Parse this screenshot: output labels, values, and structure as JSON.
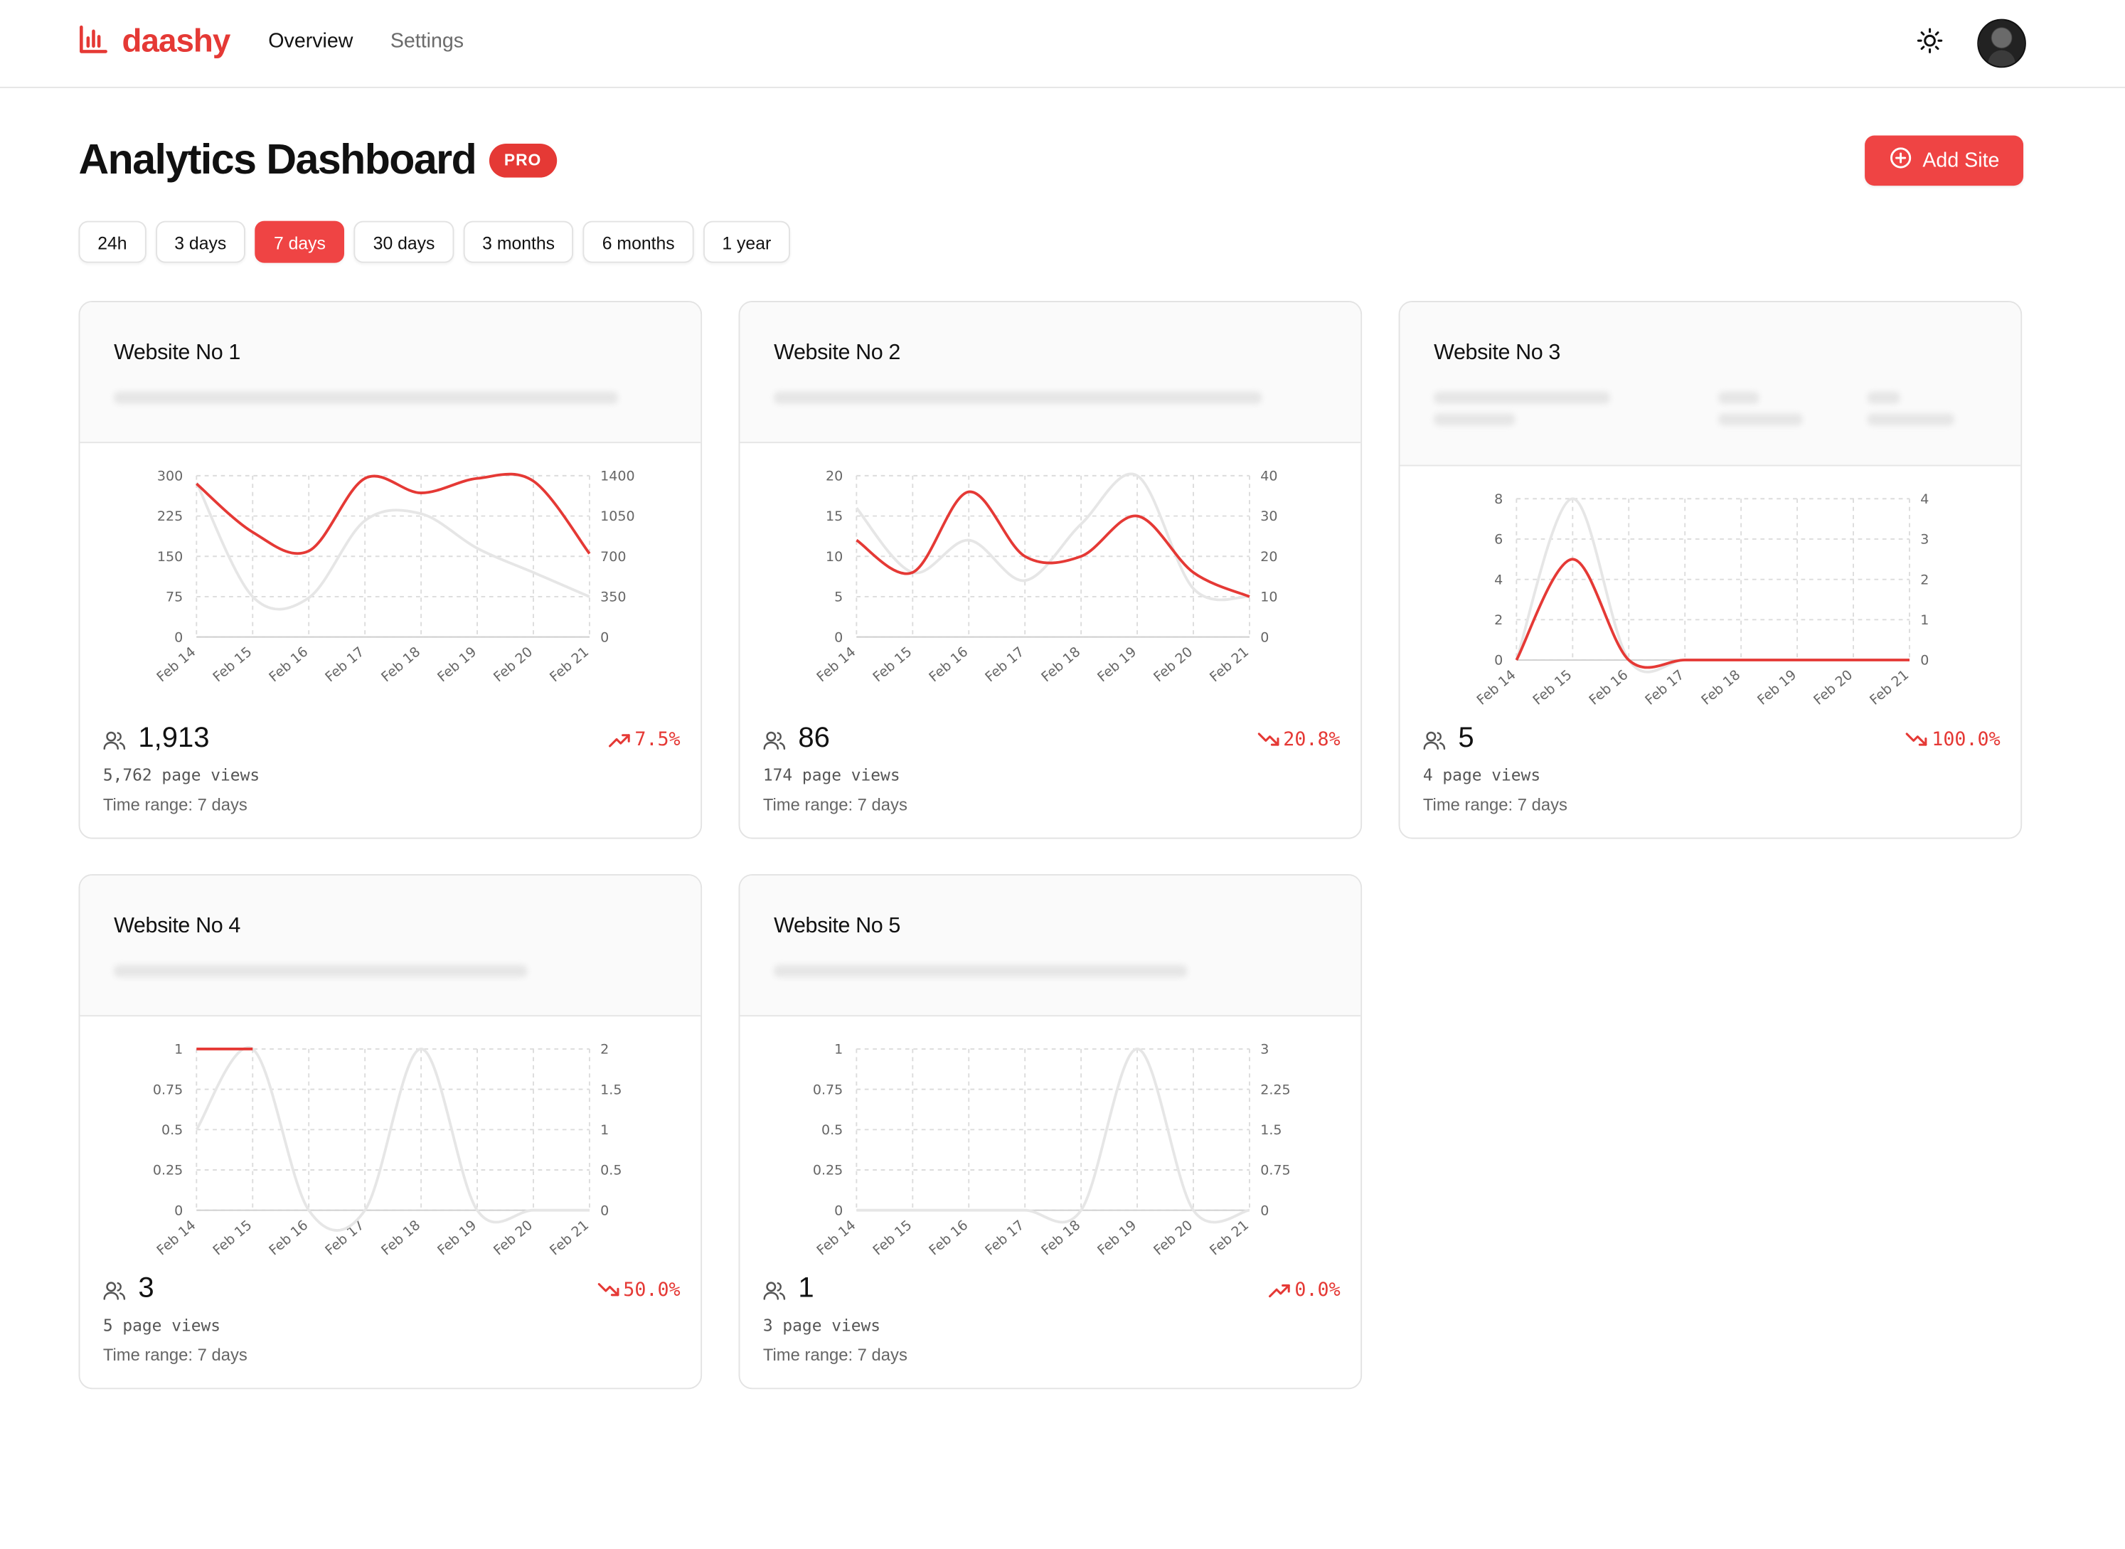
{
  "app": {
    "name": "daashy",
    "nav": [
      {
        "label": "Overview"
      },
      {
        "label": "Settings"
      }
    ]
  },
  "page": {
    "title": "Analytics Dashboard",
    "badge": "PRO",
    "add_site_label": "Add Site"
  },
  "ranges": [
    {
      "label": "24h",
      "active": false
    },
    {
      "label": "3 days",
      "active": false
    },
    {
      "label": "7 days",
      "active": true
    },
    {
      "label": "30 days",
      "active": false
    },
    {
      "label": "3 months",
      "active": false
    },
    {
      "label": "6 months",
      "active": false
    },
    {
      "label": "1 year",
      "active": false
    }
  ],
  "colors": {
    "accent": "#ef4444",
    "line_visitors": "#e53935",
    "line_pageviews": "#e6e6e6"
  },
  "sites": [
    {
      "name": "Website No 1",
      "visitors": "1,913",
      "change": "7.5%",
      "trend": "up",
      "pageviews": "5,762 page views",
      "time_range": "Time range: 7 days",
      "chart_data": {
        "type": "line",
        "x": [
          "Feb 14",
          "Feb 15",
          "Feb 16",
          "Feb 17",
          "Feb 18",
          "Feb 19",
          "Feb 20",
          "Feb 21"
        ],
        "y_left_ticks": [
          "0",
          "75",
          "150",
          "225",
          "300"
        ],
        "y_right_ticks": [
          "0",
          "350",
          "700",
          "1050",
          "1400"
        ],
        "ylim_left": [
          0,
          300
        ],
        "ylim_right": [
          0,
          1400
        ],
        "series": [
          {
            "axis": "left",
            "color": "#e53935",
            "values": [
              285,
              195,
              160,
              295,
              268,
              295,
              290,
              155
            ]
          },
          {
            "axis": "right",
            "color": "#e6e6e6",
            "values": [
              1340,
              350,
              340,
              1010,
              1070,
              770,
              560,
              350
            ]
          }
        ]
      }
    },
    {
      "name": "Website No 2",
      "visitors": "86",
      "change": "20.8%",
      "trend": "down",
      "pageviews": "174 page views",
      "time_range": "Time range: 7 days",
      "chart_data": {
        "type": "line",
        "x": [
          "Feb 14",
          "Feb 15",
          "Feb 16",
          "Feb 17",
          "Feb 18",
          "Feb 19",
          "Feb 20",
          "Feb 21"
        ],
        "y_left_ticks": [
          "0",
          "5",
          "10",
          "15",
          "20"
        ],
        "y_right_ticks": [
          "0",
          "10",
          "20",
          "30",
          "40"
        ],
        "ylim_left": [
          0,
          20
        ],
        "ylim_right": [
          0,
          40
        ],
        "series": [
          {
            "axis": "left",
            "color": "#e53935",
            "values": [
              12,
              8,
              18,
              10,
              10,
              15,
              8,
              5
            ]
          },
          {
            "axis": "right",
            "color": "#e6e6e6",
            "values": [
              32,
              16,
              24,
              14,
              28,
              40,
              12,
              10
            ]
          }
        ]
      }
    },
    {
      "name": "Website No 3",
      "visitors": "5",
      "change": "100.0%",
      "trend": "down",
      "pageviews": "4 page views",
      "time_range": "Time range: 7 days",
      "chart_data": {
        "type": "line",
        "x": [
          "Feb 14",
          "Feb 15",
          "Feb 16",
          "Feb 17",
          "Feb 18",
          "Feb 19",
          "Feb 20",
          "Feb 21"
        ],
        "y_left_ticks": [
          "0",
          "2",
          "4",
          "6",
          "8"
        ],
        "y_right_ticks": [
          "0",
          "1",
          "2",
          "3",
          "4"
        ],
        "ylim_left": [
          0,
          8
        ],
        "ylim_right": [
          0,
          4
        ],
        "series": [
          {
            "axis": "left",
            "color": "#e53935",
            "values": [
              0,
              5,
              0,
              0,
              0,
              0,
              0,
              0
            ]
          },
          {
            "axis": "right",
            "color": "#e6e6e6",
            "values": [
              0,
              4,
              0,
              0,
              0,
              0,
              0,
              0
            ]
          }
        ]
      }
    },
    {
      "name": "Website No 4",
      "visitors": "3",
      "change": "50.0%",
      "trend": "down",
      "pageviews": "5 page views",
      "time_range": "Time range: 7 days",
      "chart_data": {
        "type": "line",
        "x": [
          "Feb 14",
          "Feb 15",
          "Feb 16",
          "Feb 17",
          "Feb 18",
          "Feb 19",
          "Feb 20",
          "Feb 21"
        ],
        "y_left_ticks": [
          "0",
          "0.25",
          "0.5",
          "0.75",
          "1"
        ],
        "y_right_ticks": [
          "0",
          "0.5",
          "1",
          "1.5",
          "2"
        ],
        "ylim_left": [
          0,
          1
        ],
        "ylim_right": [
          0,
          2
        ],
        "series": [
          {
            "axis": "left",
            "color": "#e53935",
            "values": [
              1,
              1,
              null,
              null,
              null,
              null,
              null,
              null
            ]
          },
          {
            "axis": "right",
            "color": "#e6e6e6",
            "values": [
              1,
              2,
              0,
              0,
              2,
              0,
              0,
              0
            ]
          }
        ]
      }
    },
    {
      "name": "Website No 5",
      "visitors": "1",
      "change": "0.0%",
      "trend": "up",
      "pageviews": "3 page views",
      "time_range": "Time range: 7 days",
      "chart_data": {
        "type": "line",
        "x": [
          "Feb 14",
          "Feb 15",
          "Feb 16",
          "Feb 17",
          "Feb 18",
          "Feb 19",
          "Feb 20",
          "Feb 21"
        ],
        "y_left_ticks": [
          "0",
          "0.25",
          "0.5",
          "0.75",
          "1"
        ],
        "y_right_ticks": [
          "0",
          "0.75",
          "1.5",
          "2.25",
          "3"
        ],
        "ylim_left": [
          0,
          1
        ],
        "ylim_right": [
          0,
          3
        ],
        "series": [
          {
            "axis": "left",
            "color": "#e53935",
            "values": [
              null,
              null,
              null,
              null,
              null,
              null,
              null,
              null
            ]
          },
          {
            "axis": "right",
            "color": "#e6e6e6",
            "values": [
              0,
              0,
              0,
              0,
              0,
              3,
              0,
              0
            ]
          }
        ]
      }
    }
  ]
}
